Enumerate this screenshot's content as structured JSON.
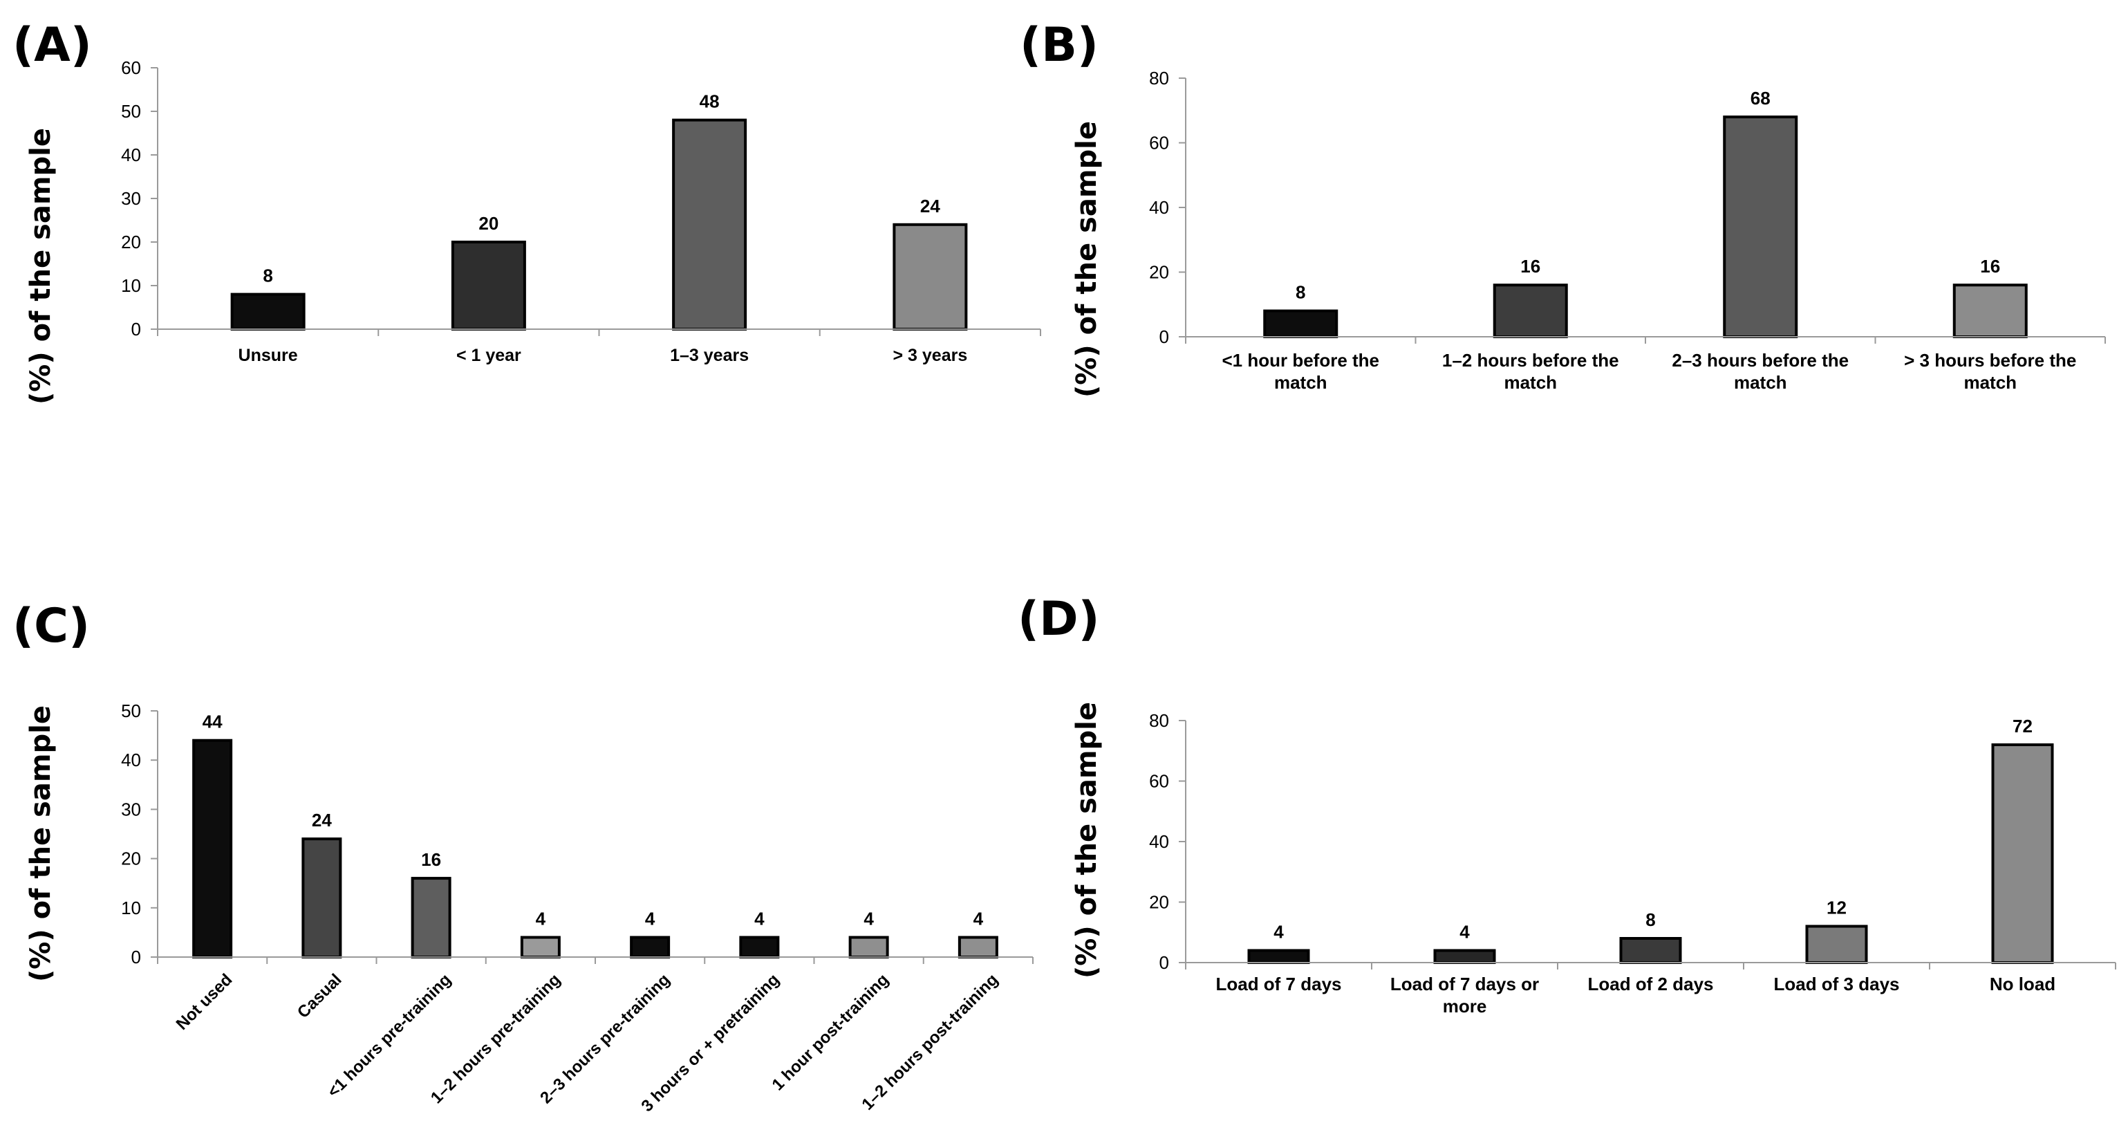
{
  "chart_data": [
    {
      "panel": "(A)",
      "type": "bar",
      "ylabel": "(%) of the sample",
      "xlabel": "",
      "ylim": [
        0,
        60
      ],
      "yticks": [
        0,
        10,
        20,
        30,
        40,
        50,
        60
      ],
      "categories": [
        "Unsure",
        "< 1 year",
        "1–3 years",
        "> 3 years"
      ],
      "values": [
        8,
        20,
        48,
        24
      ],
      "bar_colors": [
        "#0d0d0d",
        "#2e2e2e",
        "#5e5e5e",
        "#8a8a8a"
      ]
    },
    {
      "panel": "(B)",
      "type": "bar",
      "ylabel": "(%) of the sample",
      "xlabel": "",
      "ylim": [
        0,
        80
      ],
      "yticks": [
        0,
        20,
        40,
        60,
        80
      ],
      "categories": [
        "<1 hour before the match",
        "1–2 hours before the match",
        "2–3 hours before the match",
        "> 3 hours before the match"
      ],
      "values": [
        8,
        16,
        68,
        16
      ],
      "bar_colors": [
        "#0d0d0d",
        "#3d3d3d",
        "#5a5a5a",
        "#8c8c8c"
      ]
    },
    {
      "panel": "(C)",
      "type": "bar",
      "ylabel": "(%) of the sample",
      "xlabel": "",
      "ylim": [
        0,
        50
      ],
      "yticks": [
        0,
        10,
        20,
        30,
        40,
        50
      ],
      "categories": [
        "Not used",
        "Casual",
        "<1 hours pre-training",
        "1–2 hours pre-training",
        "2–3 hours pre-training",
        "3 hours or + pretraining",
        "1 hour post-training",
        "1–2 hours post-training"
      ],
      "values": [
        44,
        24,
        16,
        4,
        4,
        4,
        4,
        4
      ],
      "bar_colors": [
        "#0d0d0d",
        "#454545",
        "#5e5e5e",
        "#9a9a9a",
        "#0d0d0d",
        "#0d0d0d",
        "#8f8f8f",
        "#8f8f8f"
      ]
    },
    {
      "panel": "(D)",
      "type": "bar",
      "ylabel": "(%) of the sample",
      "xlabel": "",
      "ylim": [
        0,
        80
      ],
      "yticks": [
        0,
        20,
        40,
        60,
        80
      ],
      "categories": [
        "Load of 7 days",
        "Load of 7 days or more",
        "Load of 2 days",
        "Load of 3 days",
        "No load"
      ],
      "values": [
        4,
        4,
        8,
        12,
        72
      ],
      "bar_colors": [
        "#0d0d0d",
        "#262626",
        "#3a3a3a",
        "#7a7a7a",
        "#8a8a8a"
      ]
    }
  ]
}
